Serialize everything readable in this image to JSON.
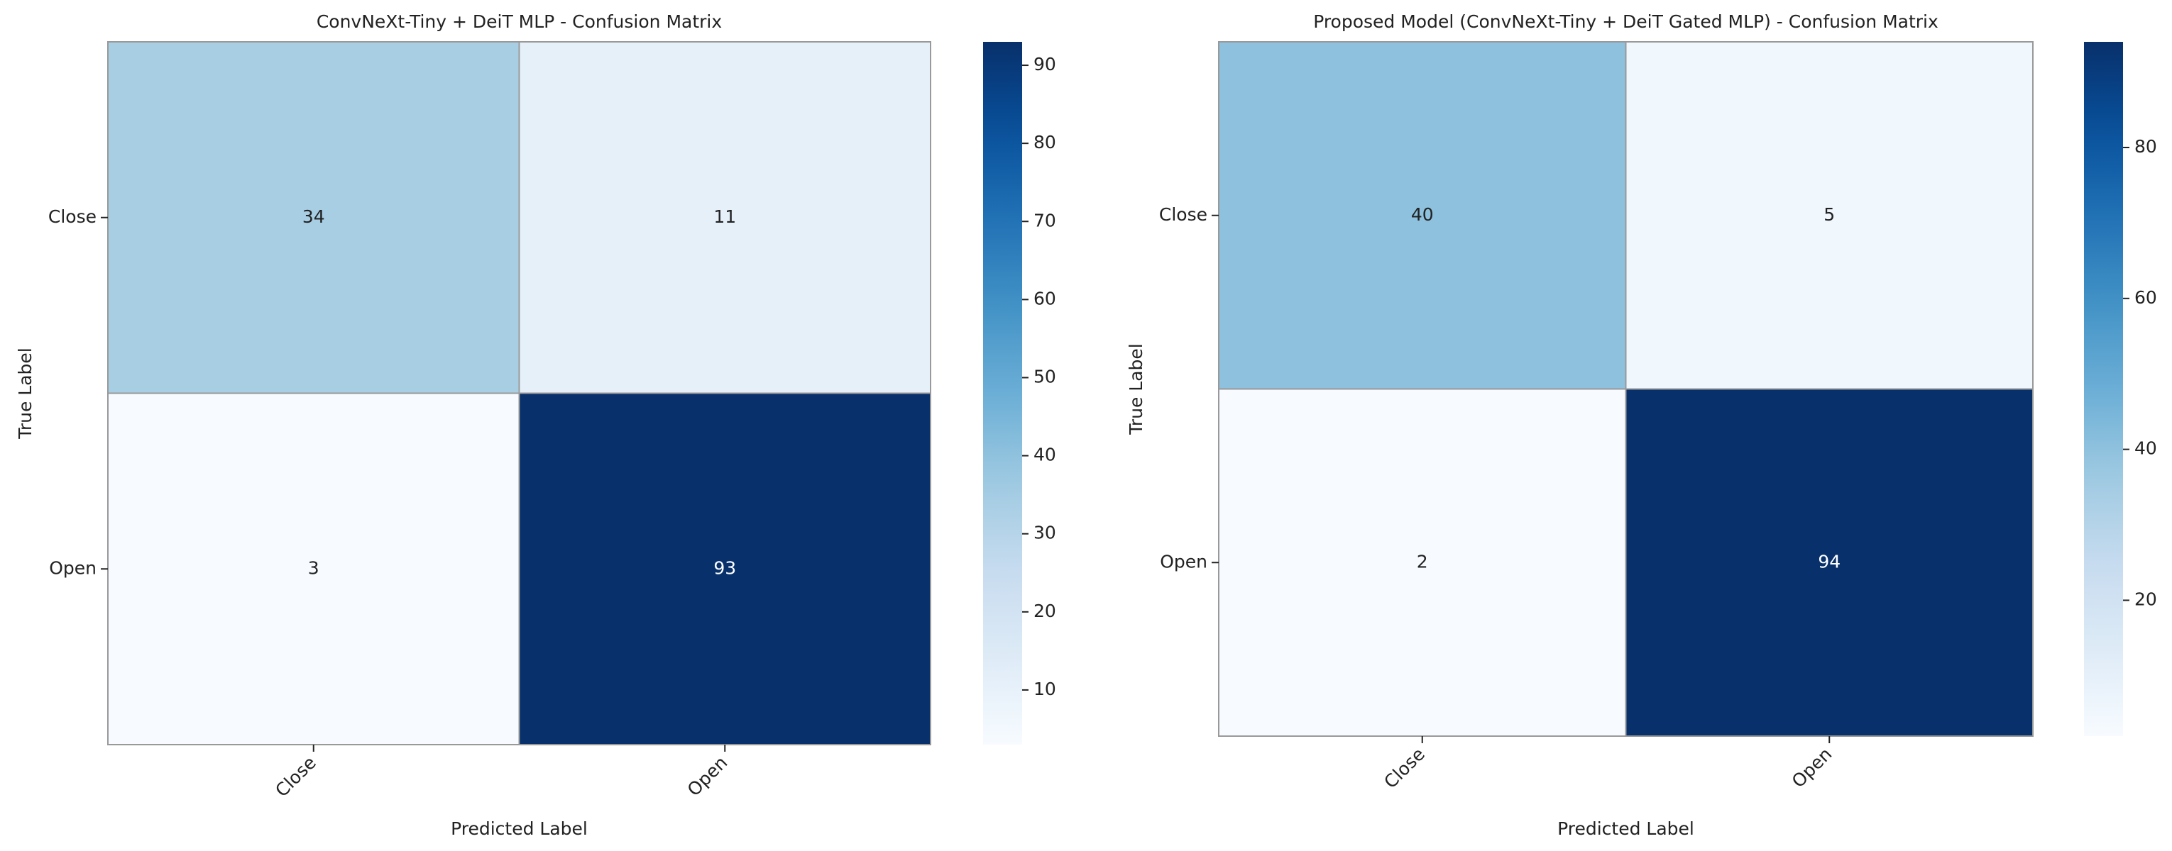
{
  "chart_data": [
    {
      "type": "heatmap",
      "title": "ConvNeXt-Tiny + DeiT MLP - Confusion Matrix",
      "x_label": "Predicted Label",
      "y_label": "True Label",
      "x_categories": [
        "Close",
        "Open"
      ],
      "y_categories": [
        "Close",
        "Open"
      ],
      "values": [
        [
          34,
          11
        ],
        [
          3,
          93
        ]
      ],
      "colormap": "Blues",
      "clim": [
        3,
        93
      ],
      "cticks": [
        10,
        20,
        30,
        40,
        50,
        60,
        70,
        80,
        90
      ]
    },
    {
      "type": "heatmap",
      "title": "Proposed Model (ConvNeXt-Tiny + DeiT Gated MLP) - Confusion Matrix",
      "x_label": "Predicted Label",
      "y_label": "True Label",
      "x_categories": [
        "Close",
        "Open"
      ],
      "y_categories": [
        "Close",
        "Open"
      ],
      "values": [
        [
          40,
          5
        ],
        [
          2,
          94
        ]
      ],
      "colormap": "Blues",
      "clim": [
        2,
        94
      ],
      "cticks": [
        20,
        40,
        60,
        80
      ]
    }
  ]
}
